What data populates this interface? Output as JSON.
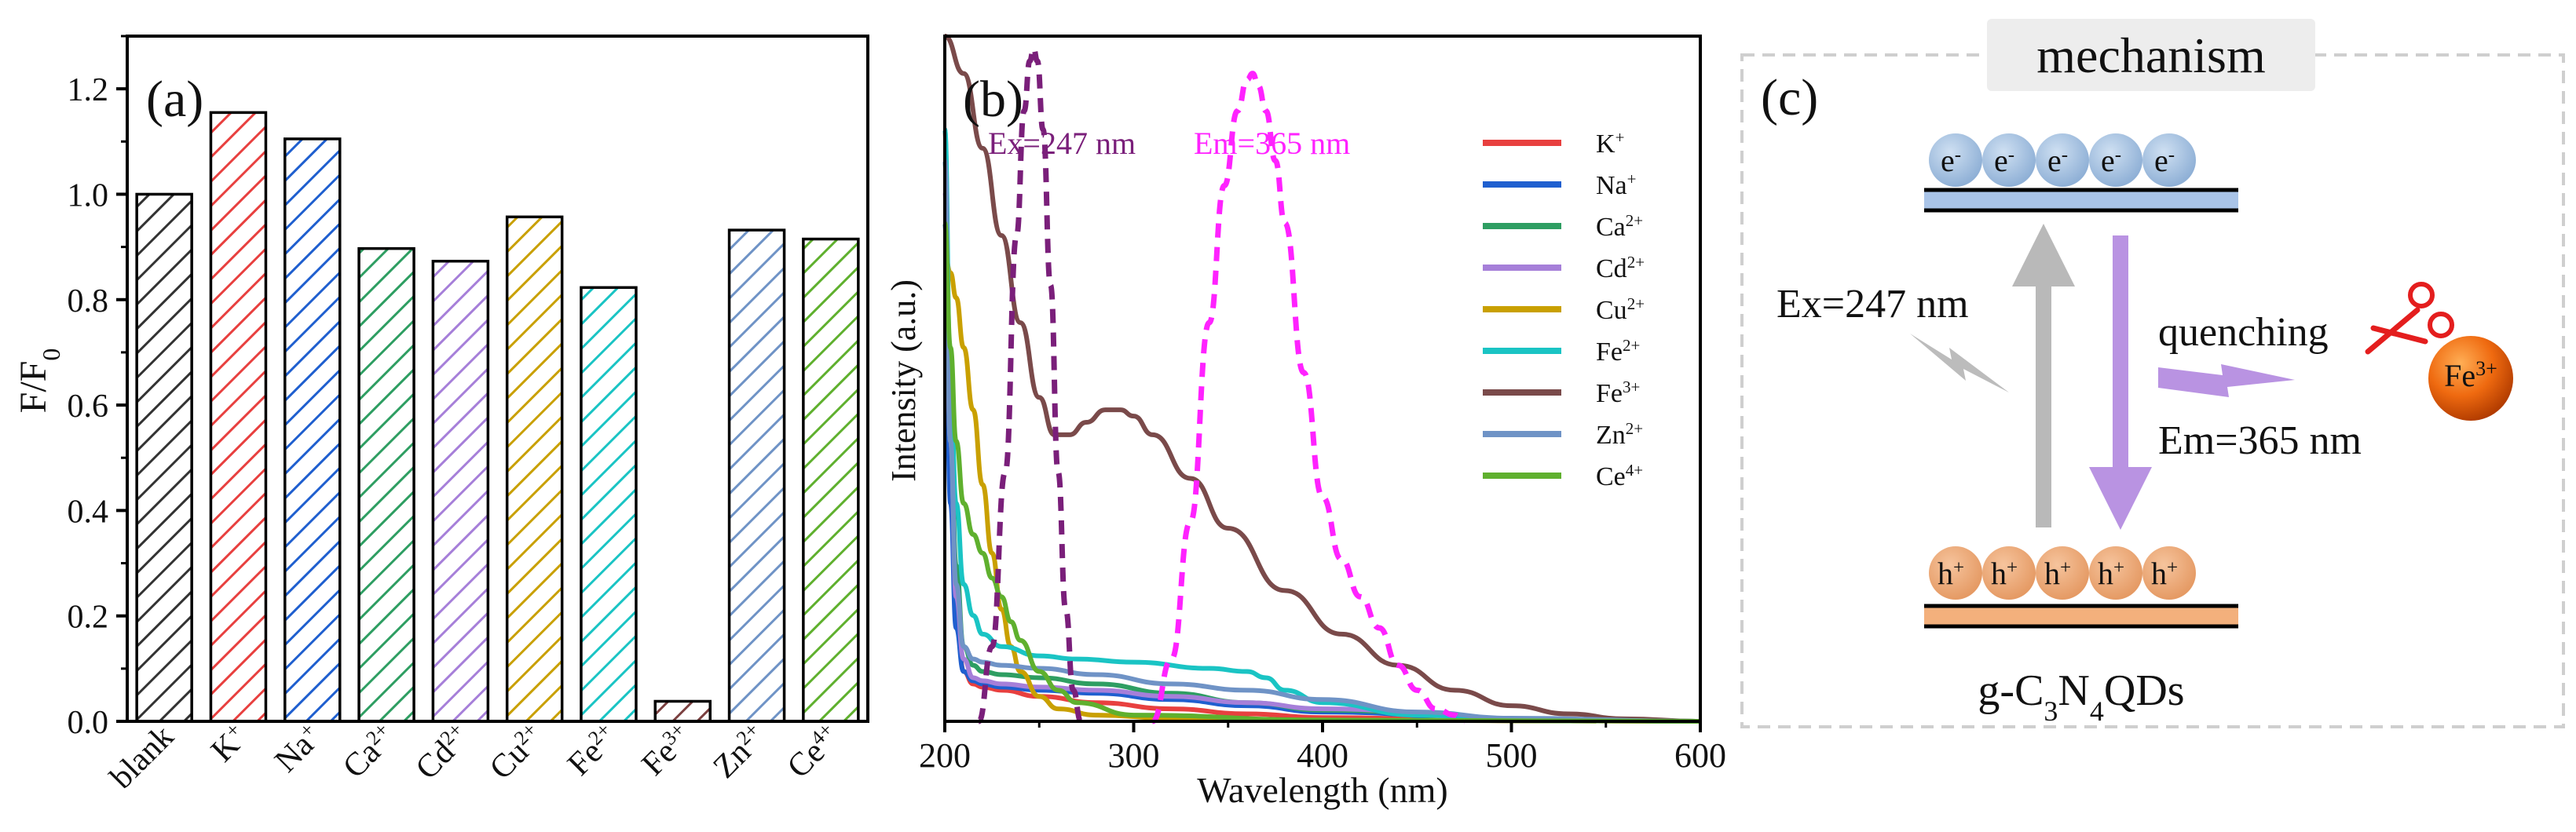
{
  "panel_a": {
    "label": "(a)",
    "ylabel_main": "F/F",
    "ylabel_sub": "0"
  },
  "panel_b": {
    "label": "(b)",
    "ylabel": "Intensity (a.u.)",
    "xlabel": "Wavelength (nm)",
    "ex_annotation": "Ex=247 nm",
    "em_annotation": "Em=365 nm"
  },
  "panel_c": {
    "label": "(c)",
    "title": "mechanism",
    "electron": "e",
    "electron_sup": "-",
    "hole": "h",
    "hole_sup": "+",
    "ex_text": "Ex=247 nm",
    "quench_text": "quenching",
    "em_text": "Em=365 nm",
    "ion_base": "Fe",
    "ion_sup": "3+",
    "material": {
      "p1": "g-C",
      "s1": "3",
      "p2": "N",
      "s2": "4",
      "p3": "QDs"
    }
  },
  "chart_data": [
    {
      "type": "bar",
      "panel": "(a)",
      "categories": [
        {
          "base": "blank",
          "sup": ""
        },
        {
          "base": "K",
          "sup": "+"
        },
        {
          "base": "Na",
          "sup": "+"
        },
        {
          "base": "Ca",
          "sup": "2+"
        },
        {
          "base": "Cd",
          "sup": "2+"
        },
        {
          "base": "Cu",
          "sup": "2+"
        },
        {
          "base": "Fe",
          "sup": "2+"
        },
        {
          "base": "Fe",
          "sup": "3+"
        },
        {
          "base": "Zn",
          "sup": "2+"
        },
        {
          "base": "Ce",
          "sup": "4+"
        }
      ],
      "values": [
        1.0,
        1.155,
        1.105,
        0.897,
        0.873,
        0.957,
        0.823,
        0.038,
        0.932,
        0.915
      ],
      "colors": [
        "#333333",
        "#e8403f",
        "#1f5fcf",
        "#2e9e62",
        "#a67fd9",
        "#c9a000",
        "#1ac4c4",
        "#7b4040",
        "#6f93c6",
        "#5fb02e"
      ],
      "hatched": true,
      "ylabel": "F/F0",
      "ylim": [
        0,
        1.3
      ],
      "yticks": [
        "0.0",
        "0.2",
        "0.4",
        "0.6",
        "0.8",
        "1.0",
        "1.2"
      ]
    },
    {
      "type": "line",
      "panel": "(b)",
      "xlabel": "Wavelength (nm)",
      "ylabel": "Intensity (a.u.)",
      "xlim": [
        200,
        600
      ],
      "ylim": [
        0,
        1.1
      ],
      "xticks": [
        "200",
        "300",
        "400",
        "500",
        "600"
      ],
      "legend_position": "top-right",
      "series": [
        {
          "name": "K",
          "sup": "+",
          "color": "#e8403f",
          "x": [
            200,
            203,
            206,
            210,
            215,
            220,
            230,
            250,
            280,
            320,
            360,
            400,
            500,
            600
          ],
          "y": [
            0.95,
            0.4,
            0.17,
            0.08,
            0.06,
            0.055,
            0.05,
            0.04,
            0.03,
            0.02,
            0.012,
            0.006,
            0.001,
            0
          ]
        },
        {
          "name": "Na",
          "sup": "+",
          "color": "#1f5fcf",
          "x": [
            200,
            203,
            206,
            210,
            215,
            220,
            230,
            250,
            280,
            320,
            360,
            400,
            500,
            600
          ],
          "y": [
            0.8,
            0.35,
            0.15,
            0.08,
            0.065,
            0.06,
            0.055,
            0.05,
            0.045,
            0.035,
            0.025,
            0.015,
            0.003,
            0
          ]
        },
        {
          "name": "Ca",
          "sup": "2+",
          "color": "#2e9e62",
          "x": [
            200,
            203,
            206,
            210,
            215,
            220,
            230,
            250,
            280,
            320,
            360,
            400,
            500,
            600
          ],
          "y": [
            0.9,
            0.5,
            0.25,
            0.12,
            0.09,
            0.08,
            0.075,
            0.07,
            0.06,
            0.045,
            0.03,
            0.018,
            0.004,
            0
          ]
        },
        {
          "name": "Cd",
          "sup": "2+",
          "color": "#a67fd9",
          "x": [
            200,
            203,
            206,
            210,
            215,
            220,
            230,
            250,
            280,
            320,
            360,
            400,
            500,
            600
          ],
          "y": [
            0.85,
            0.45,
            0.2,
            0.1,
            0.07,
            0.065,
            0.06,
            0.055,
            0.05,
            0.04,
            0.03,
            0.02,
            0.004,
            0
          ]
        },
        {
          "name": "Cu",
          "sup": "2+",
          "color": "#c9a000",
          "x": [
            200,
            203,
            206,
            210,
            215,
            220,
            225,
            230,
            235,
            240,
            250,
            260,
            280,
            320,
            400,
            600
          ],
          "y": [
            0.75,
            0.72,
            0.68,
            0.6,
            0.5,
            0.38,
            0.27,
            0.18,
            0.12,
            0.08,
            0.04,
            0.02,
            0.01,
            0.005,
            0.002,
            0
          ]
        },
        {
          "name": "Fe",
          "sup": "2+",
          "color": "#1ac4c4",
          "x": [
            200,
            203,
            206,
            210,
            215,
            220,
            230,
            250,
            270,
            300,
            340,
            360,
            370,
            380,
            400,
            450,
            500,
            600
          ],
          "y": [
            0.95,
            0.55,
            0.35,
            0.22,
            0.17,
            0.14,
            0.12,
            0.105,
            0.1,
            0.095,
            0.085,
            0.08,
            0.07,
            0.05,
            0.03,
            0.01,
            0.003,
            0
          ]
        },
        {
          "name": "Fe",
          "sup": "3+",
          "color": "#7a4a4a",
          "x": [
            200,
            210,
            220,
            230,
            240,
            250,
            258,
            266,
            275,
            285,
            293,
            300,
            310,
            330,
            350,
            380,
            410,
            440,
            470,
            500,
            530,
            560,
            600
          ],
          "y": [
            1.1,
            1.04,
            0.92,
            0.78,
            0.64,
            0.52,
            0.46,
            0.46,
            0.48,
            0.5,
            0.5,
            0.49,
            0.46,
            0.39,
            0.31,
            0.21,
            0.14,
            0.09,
            0.05,
            0.025,
            0.012,
            0.004,
            0
          ]
        },
        {
          "name": "Zn",
          "sup": "2+",
          "color": "#6f93c6",
          "x": [
            200,
            203,
            206,
            210,
            215,
            220,
            230,
            250,
            280,
            320,
            360,
            400,
            450,
            500,
            600
          ],
          "y": [
            0.9,
            0.45,
            0.22,
            0.12,
            0.1,
            0.095,
            0.09,
            0.085,
            0.075,
            0.06,
            0.05,
            0.035,
            0.015,
            0.005,
            0
          ]
        },
        {
          "name": "Ce",
          "sup": "4+",
          "color": "#5fb02e",
          "x": [
            200,
            203,
            206,
            210,
            215,
            220,
            225,
            230,
            235,
            240,
            250,
            260,
            270,
            300,
            400,
            600
          ],
          "y": [
            0.8,
            0.6,
            0.45,
            0.35,
            0.3,
            0.27,
            0.23,
            0.2,
            0.16,
            0.13,
            0.08,
            0.05,
            0.03,
            0.01,
            0.002,
            0
          ]
        },
        {
          "name": "Ex=247 nm",
          "color": "#7a1f7a",
          "dashed": true,
          "x": [
            218,
            225,
            232,
            238,
            242,
            245,
            247,
            249,
            252,
            256,
            260,
            264,
            268,
            272
          ],
          "y": [
            0.0,
            0.12,
            0.4,
            0.78,
            0.98,
            1.06,
            1.08,
            1.06,
            0.95,
            0.7,
            0.4,
            0.18,
            0.05,
            0.0
          ]
        },
        {
          "name": "Em=365 nm",
          "color": "#ff22ff",
          "dashed": true,
          "x": [
            310,
            320,
            330,
            340,
            348,
            355,
            360,
            363,
            366,
            370,
            375,
            380,
            390,
            400,
            410,
            420,
            430,
            440,
            450,
            460,
            470,
            475
          ],
          "y": [
            0.0,
            0.1,
            0.32,
            0.64,
            0.86,
            0.98,
            1.03,
            1.04,
            1.02,
            0.98,
            0.9,
            0.8,
            0.56,
            0.36,
            0.26,
            0.2,
            0.15,
            0.09,
            0.05,
            0.02,
            0.01,
            0.0
          ]
        }
      ]
    }
  ]
}
